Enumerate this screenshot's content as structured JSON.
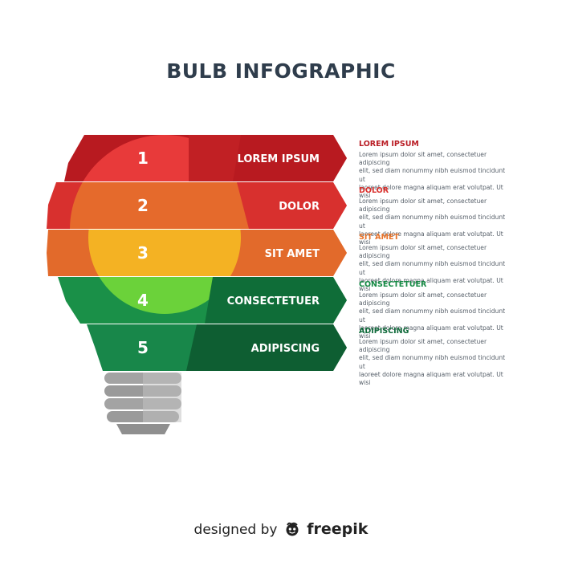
{
  "title": "BULB INFOGRAPHIC",
  "bands": [
    {
      "number": "1",
      "label": "LOREM IPSUM"
    },
    {
      "number": "2",
      "label": "DOLOR"
    },
    {
      "number": "3",
      "label": "SIT AMET"
    },
    {
      "number": "4",
      "label": "CONSECTETUER"
    },
    {
      "number": "5",
      "label": "ADIPISCING"
    }
  ],
  "items": [
    {
      "heading": "LOREM IPSUM",
      "color": "#b91c24",
      "lines": [
        "Lorem ipsum dolor sit amet, consectetuer adipiscing",
        "elit, sed diam nonummy nibh euismod tincidunt ut",
        "laoreet dolore magna aliquam erat volutpat. Ut wisi"
      ]
    },
    {
      "heading": "DOLOR",
      "color": "#d9322e",
      "lines": [
        "Lorem ipsum dolor sit amet, consectetuer adipiscing",
        "elit, sed diam nonummy nibh euismod tincidunt ut",
        "laoreet dolore magna aliquam erat volutpat. Ut wisi"
      ]
    },
    {
      "heading": "SIT AMET",
      "color": "#e8732a",
      "lines": [
        "Lorem ipsum dolor sit amet, consectetuer adipiscing",
        "elit, sed diam nonummy nibh euismod tincidunt ut",
        "laoreet dolore magna aliquam erat volutpat. Ut wisi"
      ]
    },
    {
      "heading": "CONSECTETUER",
      "color": "#158a44",
      "lines": [
        "Lorem ipsum dolor sit amet, consectetuer adipiscing",
        "elit, sed diam nonummy nibh euismod tincidunt ut",
        "laoreet dolore magna aliquam erat volutpat. Ut wisi"
      ]
    },
    {
      "heading": "ADIPISCING",
      "color": "#0f6a3a",
      "lines": [
        "Lorem ipsum dolor sit amet, consectetuer adipiscing",
        "elit, sed diam nonummy nibh euismod tincidunt ut",
        "laoreet dolore magna aliquam erat volutpat. Ut wisi"
      ]
    }
  ],
  "credit": {
    "prefix": "designed by",
    "brand": "freepik"
  },
  "colors": {
    "band1": "#c41d23",
    "band2": "#dd3a31",
    "band3": "#e6702a",
    "band4": "#1a9048",
    "band5": "#136e3b",
    "glow_yellow": "#f4b223",
    "glow_green": "#6bd23a",
    "base_gray": "#a0a0a0"
  }
}
